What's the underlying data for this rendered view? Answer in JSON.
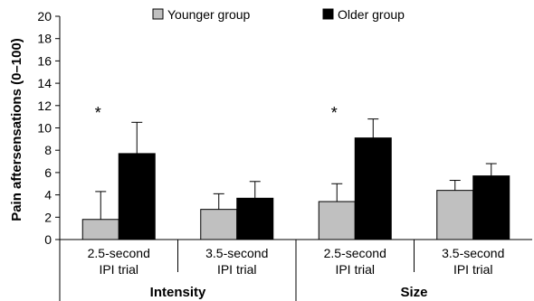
{
  "chart_data": {
    "type": "bar",
    "ylabel": "Pain aftersensations (0–100)",
    "ylim": [
      0,
      20
    ],
    "yticks": [
      0,
      2,
      4,
      6,
      8,
      10,
      12,
      14,
      16,
      18,
      20
    ],
    "groups": [
      {
        "label": "Intensity",
        "categories": [
          "2.5-second IPI trial",
          "3.5-second IPI trial"
        ]
      },
      {
        "label": "Size",
        "categories": [
          "2.5-second IPI trial",
          "3.5-second IPI trial"
        ]
      }
    ],
    "categories": [
      {
        "line1": "2.5-second",
        "line2": "IPI trial"
      },
      {
        "line1": "3.5-second",
        "line2": "IPI trial"
      },
      {
        "line1": "2.5-second",
        "line2": "IPI trial"
      },
      {
        "line1": "3.5-second",
        "line2": "IPI trial"
      }
    ],
    "series": [
      {
        "name": "Younger group",
        "color": "#c0c0c0",
        "values": [
          1.8,
          2.7,
          3.4,
          4.4
        ],
        "errors": [
          2.5,
          1.4,
          1.6,
          0.9
        ]
      },
      {
        "name": "Older group",
        "color": "#000000",
        "values": [
          7.7,
          3.7,
          9.1,
          5.7
        ],
        "errors": [
          2.8,
          1.5,
          1.7,
          1.1
        ]
      }
    ],
    "annotations": [
      {
        "text": "*",
        "category_index": 0
      },
      {
        "text": "*",
        "category_index": 2
      }
    ],
    "legend": "top"
  }
}
